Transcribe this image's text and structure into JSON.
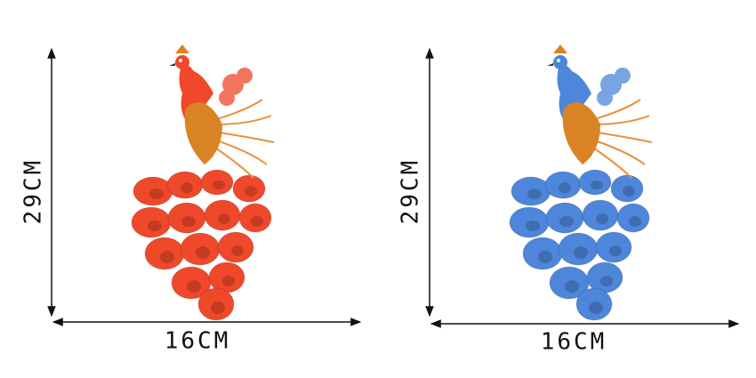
{
  "panels": [
    {
      "height_label": "29CM",
      "width_label": "16CM"
    },
    {
      "height_label": "29CM",
      "width_label": "16CM"
    }
  ]
}
